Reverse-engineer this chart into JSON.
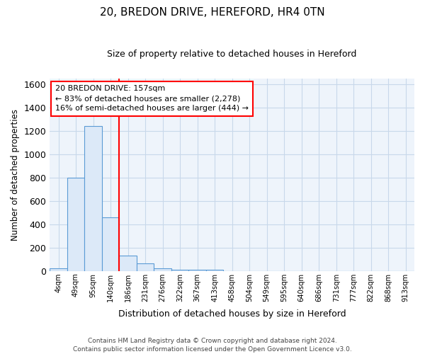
{
  "title": "20, BREDON DRIVE, HEREFORD, HR4 0TN",
  "subtitle": "Size of property relative to detached houses in Hereford",
  "xlabel": "Distribution of detached houses by size in Hereford",
  "ylabel": "Number of detached properties",
  "categories": [
    "4sqm",
    "49sqm",
    "95sqm",
    "140sqm",
    "186sqm",
    "231sqm",
    "276sqm",
    "322sqm",
    "367sqm",
    "413sqm",
    "458sqm",
    "504sqm",
    "549sqm",
    "595sqm",
    "640sqm",
    "686sqm",
    "731sqm",
    "777sqm",
    "822sqm",
    "868sqm",
    "913sqm"
  ],
  "values": [
    20,
    800,
    1240,
    460,
    130,
    65,
    25,
    10,
    10,
    10,
    0,
    0,
    0,
    0,
    0,
    0,
    0,
    0,
    0,
    0,
    0
  ],
  "bar_color": "#dce9f8",
  "bar_edge_color": "#5b9bd5",
  "red_line_index": 3.5,
  "annotation_line1": "20 BREDON DRIVE: 157sqm",
  "annotation_line2": "← 83% of detached houses are smaller (2,278)",
  "annotation_line3": "16% of semi-detached houses are larger (444) →",
  "ylim": [
    0,
    1650
  ],
  "yticks": [
    0,
    200,
    400,
    600,
    800,
    1000,
    1200,
    1400,
    1600
  ],
  "footer_line1": "Contains HM Land Registry data © Crown copyright and database right 2024.",
  "footer_line2": "Contains public sector information licensed under the Open Government Licence v3.0.",
  "background_color": "#ffffff",
  "plot_bg_color": "#eef4fb",
  "grid_color": "#c8d8ea"
}
